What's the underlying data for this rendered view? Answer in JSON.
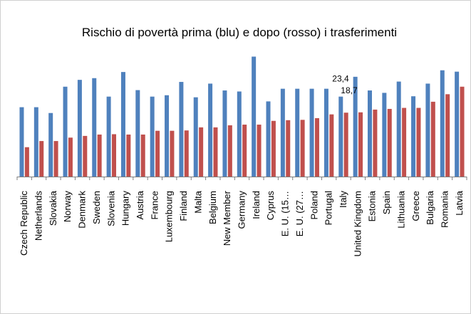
{
  "chart_data": {
    "type": "bar",
    "title": "Rischio di povertà prima (blu) e dopo (rosso) i trasferimenti",
    "xlabel": "",
    "ylabel": "",
    "categories": [
      "Czech Republic",
      "Netherlands",
      "Slovakia",
      "Norway",
      "Denmark",
      "Sweden",
      "Slovenia",
      "Hungary",
      "Austria",
      "France",
      "Luxembourg",
      "Finland",
      "Malta",
      "Belgium",
      "New Member",
      "Germany",
      "Ireland",
      "Cyprus",
      "E. U. (15…",
      "E. U. (27…",
      "Poland",
      "Portugal",
      "Italy",
      "United Kingdom",
      "Estonia",
      "Spain",
      "Lithuania",
      "Greece",
      "Bulgaria",
      "Romania",
      "Latvia"
    ],
    "series": [
      {
        "color": "#4F81BD",
        "values": [
          20.3,
          20.3,
          18.6,
          26.3,
          28.3,
          28.8,
          23.4,
          30.6,
          25.3,
          23.4,
          23.8,
          27.7,
          23.2,
          27.2,
          25.2,
          24.9,
          35.1,
          22.0,
          25.7,
          25.7,
          25.7,
          25.7,
          23.4,
          29.2,
          25.2,
          24.5,
          27.8,
          23.5,
          27.2,
          31.1,
          30.7
        ]
      },
      {
        "color": "#C0504D",
        "values": [
          8.6,
          10.4,
          10.4,
          11.4,
          11.9,
          12.3,
          12.4,
          12.3,
          12.3,
          13.4,
          13.4,
          13.5,
          14.4,
          14.4,
          15.0,
          15.2,
          15.2,
          16.3,
          16.5,
          16.6,
          17.1,
          18.2,
          18.7,
          18.8,
          19.6,
          19.8,
          20.1,
          20.1,
          21.9,
          24.1,
          26.3
        ]
      }
    ],
    "data_labels": [
      {
        "category": "Italy",
        "series": 0,
        "text": "23,4"
      },
      {
        "category": "Italy",
        "series": 1,
        "text": "18,7"
      }
    ],
    "ylim": [
      0,
      40
    ],
    "grid": false,
    "legend": "none"
  }
}
